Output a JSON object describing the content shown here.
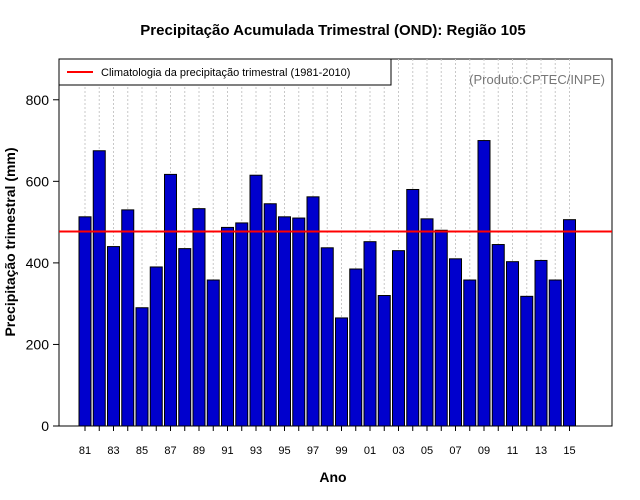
{
  "chart_data": {
    "type": "bar",
    "title": "Precipitação Acumulada Trimestral (OND): Região 105",
    "xlabel": "Ano",
    "ylabel": "Precipitação trimestral (mm)",
    "credit": "(Produto:CPTEC/INPE)",
    "ylim": [
      0,
      900
    ],
    "yticks": [
      0,
      200,
      400,
      600,
      800
    ],
    "years": [
      1981,
      1982,
      1983,
      1984,
      1985,
      1986,
      1987,
      1988,
      1989,
      1990,
      1991,
      1992,
      1993,
      1994,
      1995,
      1996,
      1997,
      1998,
      1999,
      2000,
      2001,
      2002,
      2003,
      2004,
      2005,
      2006,
      2007,
      2008,
      2009,
      2010,
      2011,
      2012,
      2013,
      2014,
      2015
    ],
    "xtick_labels": [
      "81",
      "83",
      "85",
      "87",
      "89",
      "91",
      "93",
      "95",
      "97",
      "99",
      "01",
      "03",
      "05",
      "07",
      "09",
      "11",
      "13",
      "15"
    ],
    "values": [
      513,
      675,
      440,
      530,
      290,
      390,
      617,
      435,
      533,
      358,
      487,
      498,
      615,
      545,
      513,
      510,
      562,
      437,
      265,
      385,
      452,
      320,
      430,
      580,
      508,
      480,
      410,
      358,
      700,
      445,
      403,
      318,
      406,
      358,
      506
    ],
    "bar_color": "#0000cd",
    "climatology": {
      "label": "Climatologia da precipitação trimestral (1981-2010)",
      "value": 477,
      "color": "#ff0000"
    },
    "legend_position": "top-left"
  }
}
